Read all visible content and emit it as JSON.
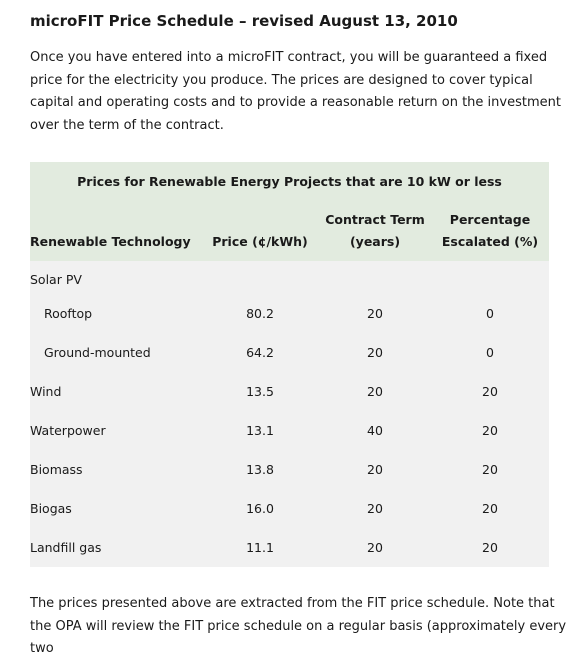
{
  "document": {
    "title": "microFIT Price Schedule – revised August 13, 2010",
    "intro": "Once you have entered into a microFIT contract, you will be guaranteed a fixed price for the electricity you produce. The prices are designed to cover typical capital and operating costs and to provide a reasonable return on the investment over the term of the contract.",
    "outro": "The prices presented above are extracted from the FIT price schedule. Note that the OPA will review the FIT price schedule on a regular basis (approximately every two"
  },
  "table": {
    "caption": "Prices for Renewable Energy Projects that are 10 kW or less",
    "headers": {
      "technology": "Renewable Technology",
      "price": "Price (¢/kWh)",
      "term_line1": "Contract Term",
      "term_line2": "(years)",
      "escalated_line1": "Percentage",
      "escalated_line2": "Escalated (%)"
    },
    "group_label": "Solar PV",
    "rows": [
      {
        "name": "Rooftop",
        "price": "80.2",
        "term": "20",
        "escalated": "0"
      },
      {
        "name": "Ground-mounted",
        "price": "64.2",
        "term": "20",
        "escalated": "0"
      },
      {
        "name": "Wind",
        "price": "13.5",
        "term": "20",
        "escalated": "20"
      },
      {
        "name": "Waterpower",
        "price": "13.1",
        "term": "40",
        "escalated": "20"
      },
      {
        "name": "Biomass",
        "price": "13.8",
        "term": "20",
        "escalated": "20"
      },
      {
        "name": "Biogas",
        "price": "16.0",
        "term": "20",
        "escalated": "20"
      },
      {
        "name": "Landfill gas",
        "price": "11.1",
        "term": "20",
        "escalated": "20"
      }
    ]
  },
  "colors": {
    "header_background": "#e2ebdf",
    "body_background": "#f1f1f1"
  }
}
